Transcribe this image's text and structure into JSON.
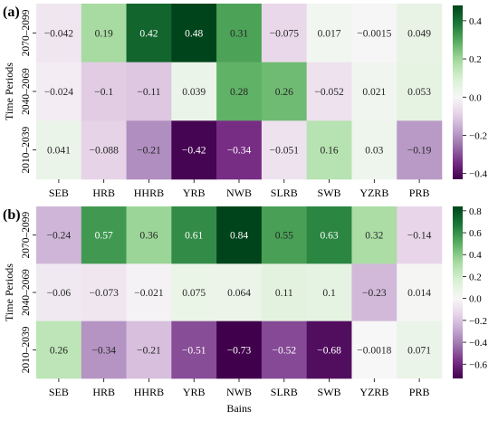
{
  "chart_data": [
    {
      "type": "heatmap",
      "panel_label": "(a)",
      "ylabel": "Time Periods",
      "xlabel": "",
      "rows": [
        "2070–2099",
        "2040–2069",
        "2010–2039"
      ],
      "columns": [
        "SEB",
        "HRB",
        "HHRB",
        "YRB",
        "NWB",
        "SLRB",
        "SWB",
        "YZRB",
        "PRB"
      ],
      "cells": [
        [
          "−0.042",
          "0.19",
          "0.42",
          "0.48",
          "0.31",
          "−0.075",
          "0.017",
          "−0.0015",
          "0.049"
        ],
        [
          "−0.024",
          "−0.1",
          "−0.11",
          "0.039",
          "0.28",
          "0.26",
          "−0.052",
          "0.021",
          "0.053"
        ],
        [
          "0.041",
          "−0.088",
          "−0.21",
          "−0.42",
          "−0.34",
          "−0.051",
          "0.16",
          "0.03",
          "−0.19"
        ]
      ],
      "values": [
        [
          -0.042,
          0.19,
          0.42,
          0.48,
          0.31,
          -0.075,
          0.017,
          -0.0015,
          0.049
        ],
        [
          -0.024,
          -0.1,
          -0.11,
          0.039,
          0.28,
          0.26,
          -0.052,
          0.021,
          0.053
        ],
        [
          0.041,
          -0.088,
          -0.21,
          -0.42,
          -0.34,
          -0.051,
          0.16,
          0.03,
          -0.19
        ]
      ],
      "colorbar": {
        "range": [
          -0.43,
          0.48
        ],
        "ticks": [
          0.4,
          0.2,
          0.0,
          -0.2,
          -0.4
        ],
        "tick_labels": [
          "0.4",
          "0.2",
          "0.0",
          "−0.2",
          "−0.4"
        ]
      },
      "colormap": "PRGn"
    },
    {
      "type": "heatmap",
      "panel_label": "(b)",
      "ylabel": "Time Periods",
      "xlabel": "Bains",
      "rows": [
        "2070–2099",
        "2040–2069",
        "2010–2039"
      ],
      "columns": [
        "SEB",
        "HRB",
        "HHRB",
        "YRB",
        "NWB",
        "SLRB",
        "SWB",
        "YZRB",
        "PRB"
      ],
      "cells": [
        [
          "−0.24",
          "0.57",
          "0.36",
          "0.61",
          "0.84",
          "0.55",
          "0.63",
          "0.32",
          "−0.14"
        ],
        [
          "−0.06",
          "−0.073",
          "−0.021",
          "0.075",
          "0.064",
          "0.11",
          "0.1",
          "−0.23",
          "0.014"
        ],
        [
          "0.26",
          "−0.34",
          "−0.21",
          "−0.51",
          "−0.73",
          "−0.52",
          "−0.68",
          "−0.0018",
          "0.071"
        ]
      ],
      "values": [
        [
          -0.24,
          0.57,
          0.36,
          0.61,
          0.84,
          0.55,
          0.63,
          0.32,
          -0.14
        ],
        [
          -0.06,
          -0.073,
          -0.021,
          0.075,
          0.064,
          0.11,
          0.1,
          -0.23,
          0.014
        ],
        [
          0.26,
          -0.34,
          -0.21,
          -0.51,
          -0.73,
          -0.52,
          -0.68,
          -0.0018,
          0.071
        ]
      ],
      "colorbar": {
        "range": [
          -0.73,
          0.84
        ],
        "ticks": [
          0.8,
          0.6,
          0.4,
          0.2,
          0.0,
          -0.2,
          -0.4,
          -0.6
        ],
        "tick_labels": [
          "0.8",
          "0.6",
          "0.4",
          "0.2",
          "0.0",
          "−0.2",
          "−0.4",
          "−0.6"
        ]
      },
      "colormap": "PRGn"
    }
  ]
}
